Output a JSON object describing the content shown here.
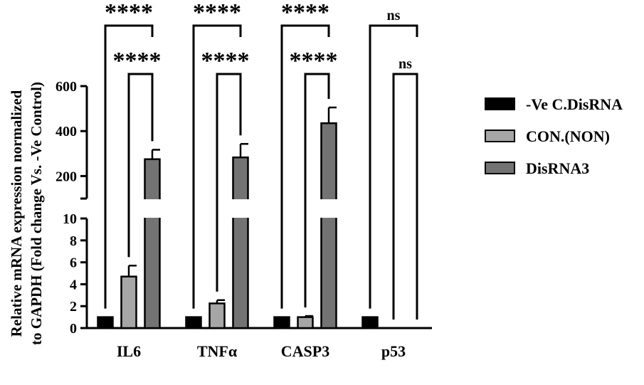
{
  "chart_data": {
    "type": "bar",
    "ylabel_line1": "Relative mRNA expression normalized",
    "ylabel_line2": "to GAPDH (Fold change Vs. -Ve Control)",
    "categories": [
      "IL6",
      "TNFα",
      "CASP3",
      "p53"
    ],
    "series": [
      {
        "name": "-Ve C.DisRNA",
        "values": [
          1,
          1,
          1,
          1
        ],
        "errors": [
          0,
          0,
          0,
          0
        ],
        "color": "#000000"
      },
      {
        "name": "CON.(NON)",
        "values": [
          4.7,
          2.25,
          1.0,
          0
        ],
        "errors": [
          1.0,
          0.3,
          0.1,
          0
        ],
        "color": "#a6a6a6"
      },
      {
        "name": "DisRNA3",
        "values": [
          275,
          283,
          435,
          0
        ],
        "errors": [
          42,
          60,
          70,
          0
        ],
        "color": "#737373"
      }
    ],
    "y_axis": {
      "lower_segment": {
        "range": [
          0,
          10
        ],
        "ticks": [
          "0",
          "2",
          "4",
          "6",
          "8",
          "10"
        ]
      },
      "upper_segment": {
        "range": [
          100,
          600
        ],
        "ticks": [
          "200",
          "400",
          "600"
        ]
      },
      "broken": true
    },
    "significance": [
      {
        "category": "IL6",
        "pair": "series1-series3",
        "label": "****"
      },
      {
        "category": "IL6",
        "pair": "series2-series3",
        "label": "****"
      },
      {
        "category": "TNFα",
        "pair": "series1-series3",
        "label": "****"
      },
      {
        "category": "TNFα",
        "pair": "series2-series3",
        "label": "****"
      },
      {
        "category": "CASP3",
        "pair": "series1-series3",
        "label": "****"
      },
      {
        "category": "CASP3",
        "pair": "series2-series3",
        "label": "****"
      },
      {
        "category": "p53",
        "pair": "series1-series3",
        "label": "ns"
      },
      {
        "category": "p53",
        "pair": "series2-series3",
        "label": "ns"
      }
    ],
    "legend_position": "right",
    "grid": false
  }
}
